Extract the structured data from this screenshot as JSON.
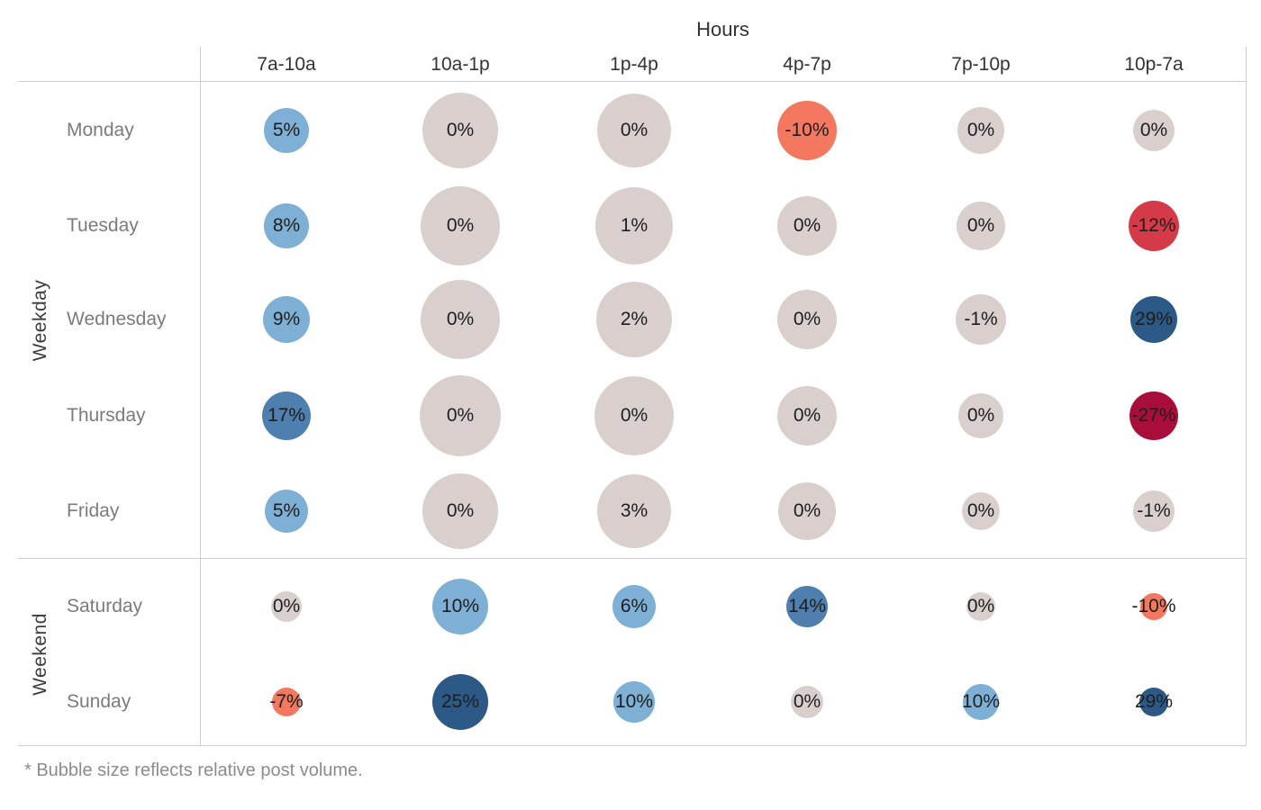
{
  "title": "Hours",
  "footnote": "* Bubble size reflects relative post volume.",
  "palette": {
    "neutral": "#d9d0cd",
    "blue_light": "#7eafd4",
    "blue_medium": "#4e7fae",
    "blue_dark": "#2c5985",
    "salmon": "#f4775f",
    "red": "#d43a47",
    "crimson": "#a90e3b"
  },
  "chart_data": {
    "type": "bubble-matrix",
    "title": "Hours",
    "xlabel": "Hours",
    "ylabel": "Weekday / Weekend",
    "columns": [
      "7a-10a",
      "10a-1p",
      "1p-4p",
      "4p-7p",
      "7p-10p",
      "10p-7a"
    ],
    "row_groups": [
      {
        "label": "Weekday",
        "rows": [
          "Monday",
          "Tuesday",
          "Wednesday",
          "Thursday",
          "Friday"
        ]
      },
      {
        "label": "Weekend",
        "rows": [
          "Saturday",
          "Sunday"
        ]
      }
    ],
    "size_note": "bubble diameter px reflects relative post volume",
    "cells": {
      "Monday": [
        {
          "label": "5%",
          "value": 5,
          "color": "#7eafd4",
          "size": 50
        },
        {
          "label": "0%",
          "value": 0,
          "color": "#d9d0cd",
          "size": 84
        },
        {
          "label": "0%",
          "value": 0,
          "color": "#d9d0cd",
          "size": 82
        },
        {
          "label": "-10%",
          "value": -10,
          "color": "#f4775f",
          "size": 66
        },
        {
          "label": "0%",
          "value": 0,
          "color": "#d9d0cd",
          "size": 52
        },
        {
          "label": "0%",
          "value": 0,
          "color": "#d9d0cd",
          "size": 46
        }
      ],
      "Tuesday": [
        {
          "label": "8%",
          "value": 8,
          "color": "#7eafd4",
          "size": 50
        },
        {
          "label": "0%",
          "value": 0,
          "color": "#d9d0cd",
          "size": 88
        },
        {
          "label": "1%",
          "value": 1,
          "color": "#d9d0cd",
          "size": 86
        },
        {
          "label": "0%",
          "value": 0,
          "color": "#d9d0cd",
          "size": 66
        },
        {
          "label": "0%",
          "value": 0,
          "color": "#d9d0cd",
          "size": 54
        },
        {
          "label": "-12%",
          "value": -12,
          "color": "#d43a47",
          "size": 56
        }
      ],
      "Wednesday": [
        {
          "label": "9%",
          "value": 9,
          "color": "#7eafd4",
          "size": 52
        },
        {
          "label": "0%",
          "value": 0,
          "color": "#d9d0cd",
          "size": 88
        },
        {
          "label": "2%",
          "value": 2,
          "color": "#d9d0cd",
          "size": 84
        },
        {
          "label": "0%",
          "value": 0,
          "color": "#d9d0cd",
          "size": 66
        },
        {
          "label": "-1%",
          "value": -1,
          "color": "#d9d0cd",
          "size": 56
        },
        {
          "label": "29%",
          "value": 29,
          "color": "#2c5985",
          "size": 52
        }
      ],
      "Thursday": [
        {
          "label": "17%",
          "value": 17,
          "color": "#4e7fae",
          "size": 54
        },
        {
          "label": "0%",
          "value": 0,
          "color": "#d9d0cd",
          "size": 90
        },
        {
          "label": "0%",
          "value": 0,
          "color": "#d9d0cd",
          "size": 88
        },
        {
          "label": "0%",
          "value": 0,
          "color": "#d9d0cd",
          "size": 66
        },
        {
          "label": "0%",
          "value": 0,
          "color": "#d9d0cd",
          "size": 50
        },
        {
          "label": "-27%",
          "value": -27,
          "color": "#a90e3b",
          "size": 54
        }
      ],
      "Friday": [
        {
          "label": "5%",
          "value": 5,
          "color": "#7eafd4",
          "size": 48
        },
        {
          "label": "0%",
          "value": 0,
          "color": "#d9d0cd",
          "size": 84
        },
        {
          "label": "3%",
          "value": 3,
          "color": "#d9d0cd",
          "size": 82
        },
        {
          "label": "0%",
          "value": 0,
          "color": "#d9d0cd",
          "size": 64
        },
        {
          "label": "0%",
          "value": 0,
          "color": "#d9d0cd",
          "size": 42
        },
        {
          "label": "-1%",
          "value": -1,
          "color": "#d9d0cd",
          "size": 46
        }
      ],
      "Saturday": [
        {
          "label": "0%",
          "value": 0,
          "color": "#d9d0cd",
          "size": 34
        },
        {
          "label": "10%",
          "value": 10,
          "color": "#7eafd4",
          "size": 62
        },
        {
          "label": "6%",
          "value": 6,
          "color": "#7eafd4",
          "size": 48
        },
        {
          "label": "14%",
          "value": 14,
          "color": "#4e7fae",
          "size": 46
        },
        {
          "label": "0%",
          "value": 0,
          "color": "#d9d0cd",
          "size": 32
        },
        {
          "label": "-10%",
          "value": -10,
          "color": "#f4775f",
          "size": 30
        }
      ],
      "Sunday": [
        {
          "label": "-7%",
          "value": -7,
          "color": "#f4775f",
          "size": 32
        },
        {
          "label": "25%",
          "value": 25,
          "color": "#2c5985",
          "size": 62
        },
        {
          "label": "10%",
          "value": 10,
          "color": "#7eafd4",
          "size": 46
        },
        {
          "label": "0%",
          "value": 0,
          "color": "#d9d0cd",
          "size": 36
        },
        {
          "label": "10%",
          "value": 10,
          "color": "#7eafd4",
          "size": 40
        },
        {
          "label": "29%",
          "value": 29,
          "color": "#2c5985",
          "size": 32
        }
      ]
    }
  }
}
